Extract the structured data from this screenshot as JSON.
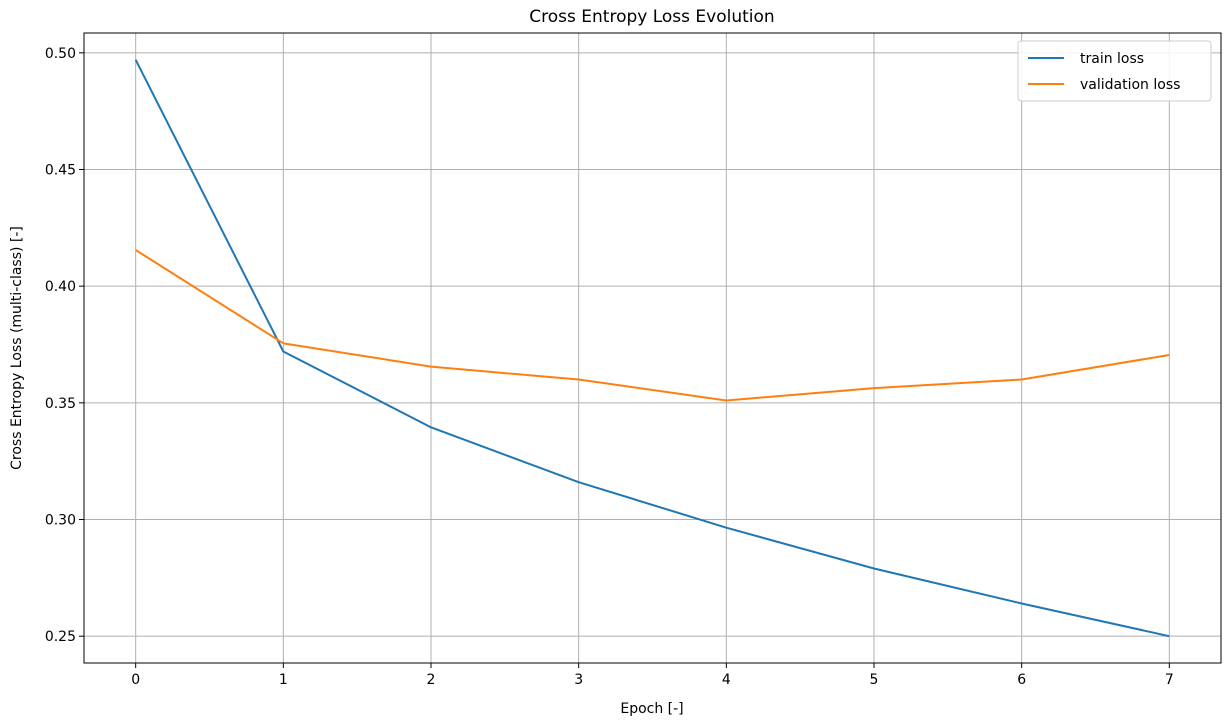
{
  "chart_data": {
    "type": "line",
    "title": "Cross Entropy Loss Evolution",
    "xlabel": "Epoch [-]",
    "ylabel": "Cross Entropy Loss (multi-class) [-]",
    "x": [
      0,
      1,
      2,
      3,
      4,
      5,
      6,
      7
    ],
    "xlim": [
      -0.35,
      7.35
    ],
    "ylim": [
      0.2385,
      0.5085
    ],
    "xticks": [
      "0",
      "1",
      "2",
      "3",
      "4",
      "5",
      "6",
      "7"
    ],
    "yticks": [
      "0.25",
      "0.30",
      "0.35",
      "0.40",
      "0.45",
      "0.50"
    ],
    "grid": true,
    "legend_position": "top-right",
    "series": [
      {
        "name": "train loss",
        "color": "#1f77b4",
        "values": [
          0.497,
          0.372,
          0.3395,
          0.316,
          0.2965,
          0.279,
          0.264,
          0.25
        ]
      },
      {
        "name": "validation loss",
        "color": "#ff7f0e",
        "values": [
          0.4155,
          0.3755,
          0.3655,
          0.36,
          0.351,
          0.3563,
          0.36,
          0.3705
        ]
      }
    ]
  }
}
